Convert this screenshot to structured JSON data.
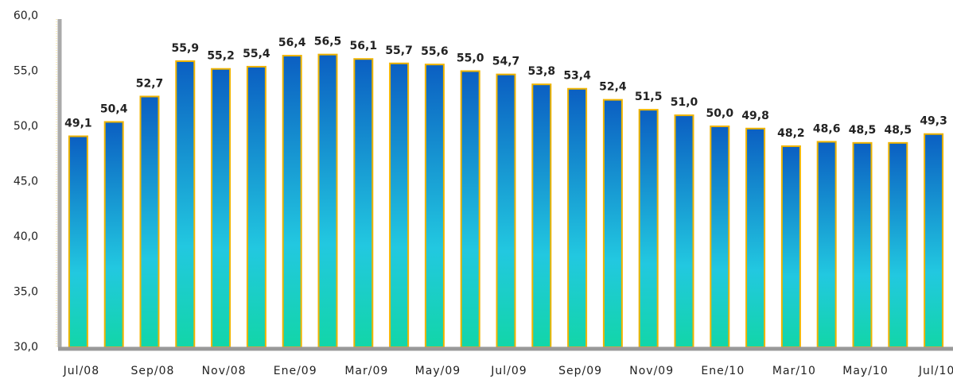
{
  "chart_data": {
    "type": "bar",
    "categories": [
      "Jul/08",
      null,
      "Sep/08",
      null,
      "Nov/08",
      null,
      "Ene/09",
      null,
      "Mar/09",
      null,
      "May/09",
      null,
      "Jul/09",
      null,
      "Sep/09",
      null,
      "Nov/09",
      null,
      "Ene/10",
      null,
      "Mar/10",
      null,
      "May/10",
      null,
      "Jul/10"
    ],
    "values": [
      49.1,
      50.4,
      52.7,
      55.9,
      55.2,
      55.4,
      56.4,
      56.5,
      56.1,
      55.7,
      55.6,
      55.0,
      54.7,
      53.8,
      53.4,
      52.4,
      51.5,
      51.0,
      50.0,
      49.8,
      48.2,
      48.6,
      48.5,
      48.5,
      49.3
    ],
    "value_labels": [
      "49,1",
      "50,4",
      "52,7",
      "55,9",
      "55,2",
      "55,4",
      "56,4",
      "56,5",
      "56,1",
      "55,7",
      "55,6",
      "55,0",
      "54,7",
      "53,8",
      "53,4",
      "52,4",
      "51,5",
      "51,0",
      "50,0",
      "49,8",
      "48,2",
      "48,6",
      "48,5",
      "48,5",
      "49,3"
    ],
    "color": "#0b5fc2",
    "edge_color": "#f0b400",
    "label_color": "#e87722",
    "ylim": [
      30,
      60
    ],
    "yticks": [
      {
        "value": 30,
        "label": "30,0"
      },
      {
        "value": 35,
        "label": "35,0"
      },
      {
        "value": 40,
        "label": "40,0"
      },
      {
        "value": 45,
        "label": "45,0"
      },
      {
        "value": 50,
        "label": "50,0"
      },
      {
        "value": 55,
        "label": "55,0"
      },
      {
        "value": 60,
        "label": "60,0"
      }
    ],
    "grid": false
  }
}
